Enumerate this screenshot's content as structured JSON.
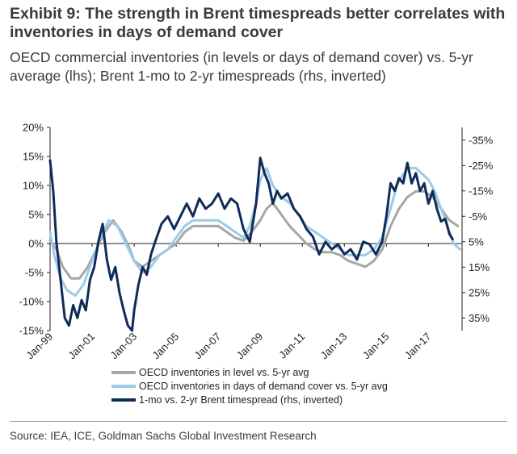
{
  "title": "Exhibit 9: The strength in Brent timespreads better correlates with inventories in days of demand cover",
  "subtitle": "OECD commercial inventories (in levels or days of demand cover) vs. 5-yr average (lhs); Brent 1-mo to 2-yr timespreads (rhs, inverted)",
  "source": "Source: IEA, ICE, Goldman Sachs Global Investment Research",
  "colors": {
    "level": "#a6a6a6",
    "days_cover": "#9ccbe8",
    "timespread": "#0f2b57"
  },
  "chart_data": {
    "type": "line",
    "title": "",
    "grid": false,
    "legend_position": "bottom",
    "x_ticks": [
      "Jan-99",
      "Jan-01",
      "Jan-03",
      "Jan-05",
      "Jan-07",
      "Jan-09",
      "Jan-11",
      "Jan-13",
      "Jan-15",
      "Jan-17"
    ],
    "x_range": [
      1999.0,
      2018.6
    ],
    "y_left": {
      "ticks": [
        "20%",
        "15%",
        "10%",
        "5%",
        "0%",
        "-5%",
        "-10%",
        "-15%"
      ],
      "range": [
        -15,
        20
      ]
    },
    "y_right": {
      "ticks": [
        "-35%",
        "-25%",
        "-15%",
        "-5%",
        "5%",
        "15%",
        "25%",
        "35%"
      ],
      "range": [
        -40,
        40
      ],
      "inverted": true
    },
    "series": [
      {
        "name": "OECD inventories in level vs. 5-yr avg",
        "axis": "left",
        "x": [
          1999.0,
          1999.3,
          1999.6,
          2000.0,
          2000.4,
          2000.8,
          2001.2,
          2001.6,
          2002.0,
          2002.4,
          2002.8,
          2003.0,
          2003.4,
          2003.8,
          2004.2,
          2004.6,
          2005.0,
          2005.4,
          2005.8,
          2006.2,
          2006.6,
          2007.0,
          2007.4,
          2007.8,
          2008.2,
          2008.6,
          2009.0,
          2009.3,
          2009.6,
          2010.0,
          2010.4,
          2010.8,
          2011.2,
          2011.6,
          2012.0,
          2012.4,
          2012.8,
          2013.2,
          2013.6,
          2014.0,
          2014.4,
          2014.8,
          2015.2,
          2015.6,
          2016.0,
          2016.4,
          2016.8,
          2017.2,
          2017.6,
          2018.0,
          2018.4
        ],
        "y": [
          0.5,
          -1,
          -4,
          -6,
          -6,
          -4,
          -1,
          2,
          4,
          2,
          -1,
          -3,
          -4,
          -3,
          -2,
          -1,
          0,
          2,
          3,
          3,
          3,
          3,
          2,
          1,
          0.5,
          2,
          4,
          6,
          7,
          5,
          3,
          1.5,
          0,
          -1,
          -1.5,
          -1.5,
          -2,
          -3,
          -3.5,
          -4,
          -3,
          -1,
          3,
          6,
          8,
          9,
          9,
          8,
          6,
          4,
          3
        ]
      },
      {
        "name": "OECD inventories in days of demand cover vs. 5-yr avg",
        "axis": "left",
        "x": [
          1999.0,
          1999.2,
          1999.5,
          1999.8,
          2000.2,
          2000.6,
          2001.0,
          2001.4,
          2001.8,
          2002.2,
          2002.6,
          2003.0,
          2003.4,
          2003.8,
          2004.2,
          2004.6,
          2005.0,
          2005.4,
          2005.8,
          2006.2,
          2006.6,
          2007.0,
          2007.4,
          2007.8,
          2008.2,
          2008.5,
          2008.8,
          2009.0,
          2009.3,
          2009.6,
          2010.0,
          2010.4,
          2010.8,
          2011.2,
          2011.6,
          2012.0,
          2012.4,
          2012.8,
          2013.2,
          2013.6,
          2014.0,
          2014.4,
          2014.8,
          2015.2,
          2015.5,
          2015.8,
          2016.1,
          2016.4,
          2016.7,
          2017.0,
          2017.3,
          2017.6,
          2017.9,
          2018.2,
          2018.5
        ],
        "y": [
          2,
          -2,
          -6,
          -8,
          -9,
          -7,
          -3,
          1,
          4,
          3,
          0,
          -3,
          -5,
          -4,
          -2,
          -1,
          1,
          3,
          4,
          4,
          4,
          4,
          3,
          2,
          1,
          3,
          7,
          11,
          13,
          10,
          8,
          7,
          5,
          3,
          2,
          1,
          0,
          -1,
          -2,
          -2,
          -2,
          -1,
          1,
          6,
          10,
          12,
          13,
          13,
          12,
          11,
          9,
          6,
          3,
          0,
          -1
        ]
      },
      {
        "name": "1-mo vs. 2-yr Brent timespread (rhs, inverted)",
        "axis": "right",
        "x": [
          1999.0,
          1999.15,
          1999.3,
          1999.5,
          1999.7,
          1999.9,
          2000.1,
          2000.3,
          2000.5,
          2000.7,
          2000.9,
          2001.1,
          2001.3,
          2001.5,
          2001.7,
          2001.9,
          2002.1,
          2002.3,
          2002.5,
          2002.7,
          2002.9,
          2003.0,
          2003.2,
          2003.4,
          2003.6,
          2003.8,
          2004.0,
          2004.3,
          2004.6,
          2004.9,
          2005.2,
          2005.5,
          2005.8,
          2006.1,
          2006.4,
          2006.7,
          2007.0,
          2007.3,
          2007.6,
          2007.9,
          2008.2,
          2008.5,
          2008.8,
          2009.0,
          2009.2,
          2009.4,
          2009.6,
          2009.8,
          2010.0,
          2010.3,
          2010.6,
          2010.9,
          2011.2,
          2011.5,
          2011.8,
          2012.1,
          2012.4,
          2012.7,
          2013.0,
          2013.3,
          2013.6,
          2013.9,
          2014.2,
          2014.5,
          2014.8,
          2015.0,
          2015.2,
          2015.4,
          2015.6,
          2015.8,
          2016.0,
          2016.2,
          2016.4,
          2016.6,
          2016.8,
          2017.0,
          2017.2,
          2017.4,
          2017.6,
          2017.8,
          2018.0,
          2018.15
        ],
        "y": [
          -27,
          -15,
          5,
          20,
          35,
          38,
          30,
          35,
          28,
          32,
          20,
          15,
          5,
          -2,
          12,
          20,
          15,
          25,
          32,
          38,
          40,
          32,
          22,
          15,
          18,
          10,
          5,
          -2,
          -5,
          0,
          -5,
          -10,
          -5,
          -12,
          -8,
          -10,
          -14,
          -8,
          -12,
          -10,
          0,
          5,
          -10,
          -28,
          -22,
          -18,
          -10,
          -15,
          -12,
          -14,
          -8,
          -5,
          0,
          3,
          10,
          5,
          8,
          6,
          10,
          8,
          12,
          5,
          6,
          10,
          5,
          -5,
          -18,
          -15,
          -20,
          -18,
          -26,
          -18,
          -22,
          -15,
          -18,
          -10,
          -15,
          -8,
          -3,
          -4,
          2,
          4
        ]
      }
    ]
  }
}
